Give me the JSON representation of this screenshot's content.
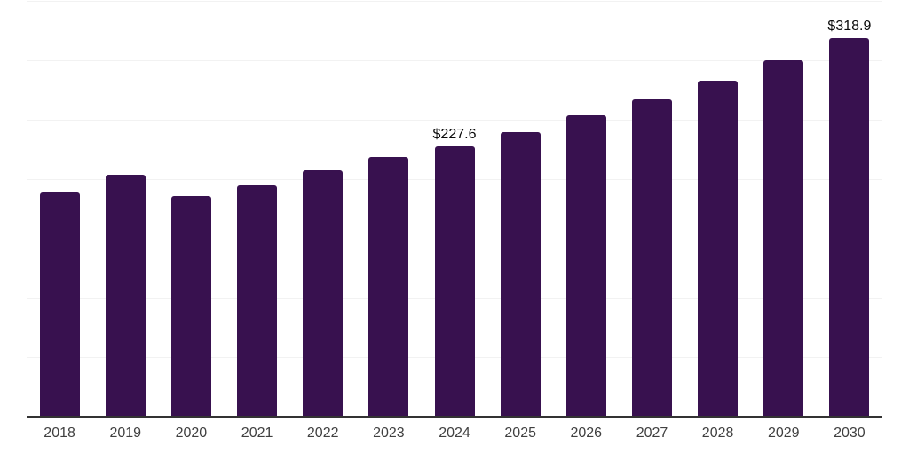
{
  "chart_data": {
    "type": "bar",
    "title": "",
    "xlabel": "",
    "ylabel": "",
    "categories": [
      "2018",
      "2019",
      "2020",
      "2021",
      "2022",
      "2023",
      "2024",
      "2025",
      "2026",
      "2027",
      "2028",
      "2029",
      "2030"
    ],
    "values": [
      189.0,
      203.7,
      185.8,
      194.8,
      207.5,
      218.7,
      227.6,
      239.6,
      253.4,
      267.2,
      282.9,
      300.0,
      318.9
    ],
    "value_labels": [
      "",
      "",
      "",
      "",
      "",
      "",
      "$227.6",
      "",
      "",
      "",
      "",
      "",
      "$318.9"
    ],
    "ylim": [
      0,
      350
    ],
    "gridline_step": 50,
    "grid": true,
    "legend": false,
    "y_axis_tick_labels_visible": false,
    "colors": {
      "bar": "#38114F",
      "axis_line": "#333333",
      "gridline": "#F2F2F2",
      "value_label": "#0A0A0A",
      "tick_label": "#404040",
      "background": "#FFFFFF"
    }
  }
}
